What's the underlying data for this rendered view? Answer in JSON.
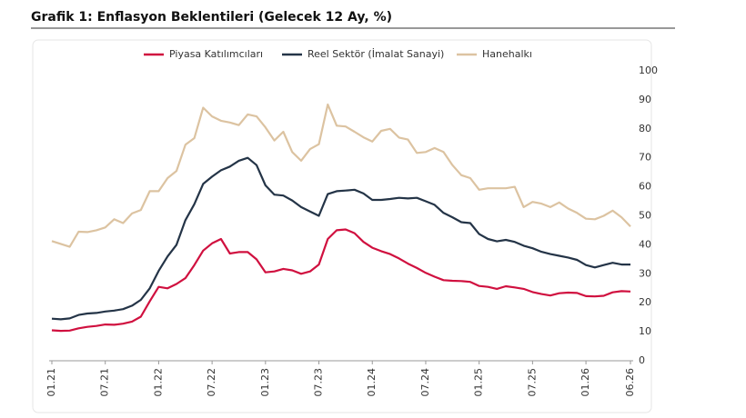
{
  "chart_data": {
    "type": "line",
    "title": "Grafik 1: Enflasyon Beklentileri (Gelecek 12 Ay, %)",
    "categories": [
      "01.21",
      null,
      null,
      null,
      null,
      null,
      "07.21",
      null,
      null,
      null,
      null,
      null,
      "01.22",
      null,
      null,
      null,
      null,
      null,
      "07.22",
      null,
      null,
      null,
      null,
      null,
      "01.23",
      null,
      null,
      null,
      null,
      null,
      "07.23",
      null,
      null,
      null,
      null,
      null,
      "01.24",
      null,
      null,
      null,
      null,
      null,
      "07.24",
      null,
      null,
      null,
      null,
      null,
      "01.25",
      null,
      null,
      null,
      null,
      null,
      "07.25",
      null,
      null,
      null,
      null,
      null,
      "01.26",
      null,
      null,
      null,
      null,
      "06.26"
    ],
    "series": [
      {
        "name": "Piyasa Katılımcıları",
        "color": "#d0103f",
        "values": [
          10.5,
          10.3,
          10.4,
          11.2,
          11.7,
          12.0,
          12.5,
          12.4,
          12.8,
          13.5,
          15.2,
          20.5,
          25.5,
          25,
          26.5,
          28.5,
          33,
          38,
          40.5,
          42,
          37,
          37.5,
          37.5,
          35,
          30.5,
          30.8,
          31.7,
          31.2,
          30,
          30.8,
          33.2,
          42,
          45,
          45.3,
          44,
          41,
          39,
          37.8,
          36.8,
          35.3,
          33.5,
          32,
          30.3,
          29,
          27.8,
          27.6,
          27.5,
          27.2,
          25.8,
          25.5,
          24.8,
          25.7,
          25.3,
          24.8,
          23.7,
          23,
          22.5,
          23.3,
          23.5,
          23.4,
          22.3,
          22.2,
          22.4,
          23.6,
          24,
          23.9
        ]
      },
      {
        "name": "Reel Sektör (İmalat Sanayi)",
        "color": "#243447",
        "values": [
          14.5,
          14.3,
          14.6,
          15.8,
          16.3,
          16.5,
          17,
          17.3,
          17.8,
          19,
          21,
          25,
          31,
          36,
          40,
          48.5,
          54,
          61,
          63.5,
          65.7,
          67,
          69,
          70,
          67.5,
          60.5,
          57.3,
          57,
          55.3,
          53,
          51.5,
          50,
          57.5,
          58.5,
          58.7,
          59,
          57.7,
          55.5,
          55.5,
          55.8,
          56.2,
          56,
          56.2,
          55,
          53.8,
          51,
          49.5,
          47.8,
          47.5,
          43.7,
          42,
          41.2,
          41.7,
          41,
          39.7,
          38.8,
          37.6,
          36.8,
          36.2,
          35.6,
          34.8,
          33,
          32.2,
          33,
          33.8,
          33.2,
          33.2
        ]
      },
      {
        "name": "Hanehalkı",
        "color": "#dcc3a1",
        "values": [
          41.3,
          40.3,
          39.3,
          44.5,
          44.4,
          45,
          46,
          48.8,
          47.5,
          50.8,
          52,
          58.5,
          58.5,
          63,
          65.5,
          74.5,
          76.8,
          87.3,
          84.3,
          82.8,
          82.2,
          81.3,
          85,
          84.3,
          80.5,
          76,
          79,
          72,
          69,
          73,
          74.7,
          88.4,
          81.1,
          80.8,
          79,
          77.1,
          75.6,
          79.3,
          80,
          77,
          76.3,
          71.7,
          72,
          73.4,
          72,
          67.5,
          64,
          63,
          59,
          59.5,
          59.5,
          59.5,
          60,
          53,
          54.8,
          54.2,
          53,
          54.6,
          52.5,
          51,
          49,
          48.8,
          50,
          51.8,
          49.5,
          46.3
        ]
      }
    ],
    "ylim": [
      0,
      100
    ],
    "yticks": [
      0,
      10,
      20,
      30,
      40,
      50,
      60,
      70,
      80,
      90,
      100
    ],
    "grid": false
  }
}
